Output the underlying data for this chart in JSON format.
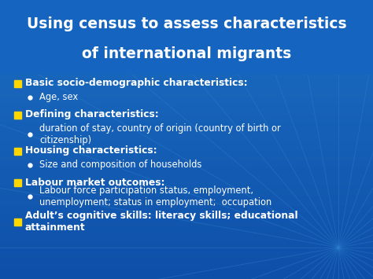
{
  "title_line1": "Using census to assess characteristics",
  "title_line2": "of international migrants",
  "title_color": "#FFFFFF",
  "title_fontsize": 13.5,
  "bg_color": "#1B6EC2",
  "bg_color_bottom": "#0E4FA8",
  "bullet_color": "#FFFFFF",
  "square_bullet_color": "#FFD700",
  "main_fontsize": 8.8,
  "sub_fontsize": 8.3,
  "figsize": [
    4.74,
    3.55
  ],
  "dpi": 100,
  "title_bg": "#1565C0",
  "content_bg": "#1B6EC2",
  "ray_color": "#2E7FD4",
  "bullet_items": [
    {
      "text": "Basic socio-demographic characteristics:",
      "sub": [
        "Age, sex"
      ]
    },
    {
      "text": "Defining characteristics:",
      "sub": [
        "duration of stay, country of origin (country of birth or\ncitizenship)"
      ]
    },
    {
      "text": "Housing characteristics:",
      "sub": [
        "Size and composition of households"
      ]
    },
    {
      "text": "Labour market outcomes:",
      "sub": [
        "Labour force participation status, employment,\nunemployment; status in employment;  occupation"
      ]
    },
    {
      "text": "Adult’s cognitive skills: literacy skills; educational\nattainment",
      "sub": []
    }
  ]
}
